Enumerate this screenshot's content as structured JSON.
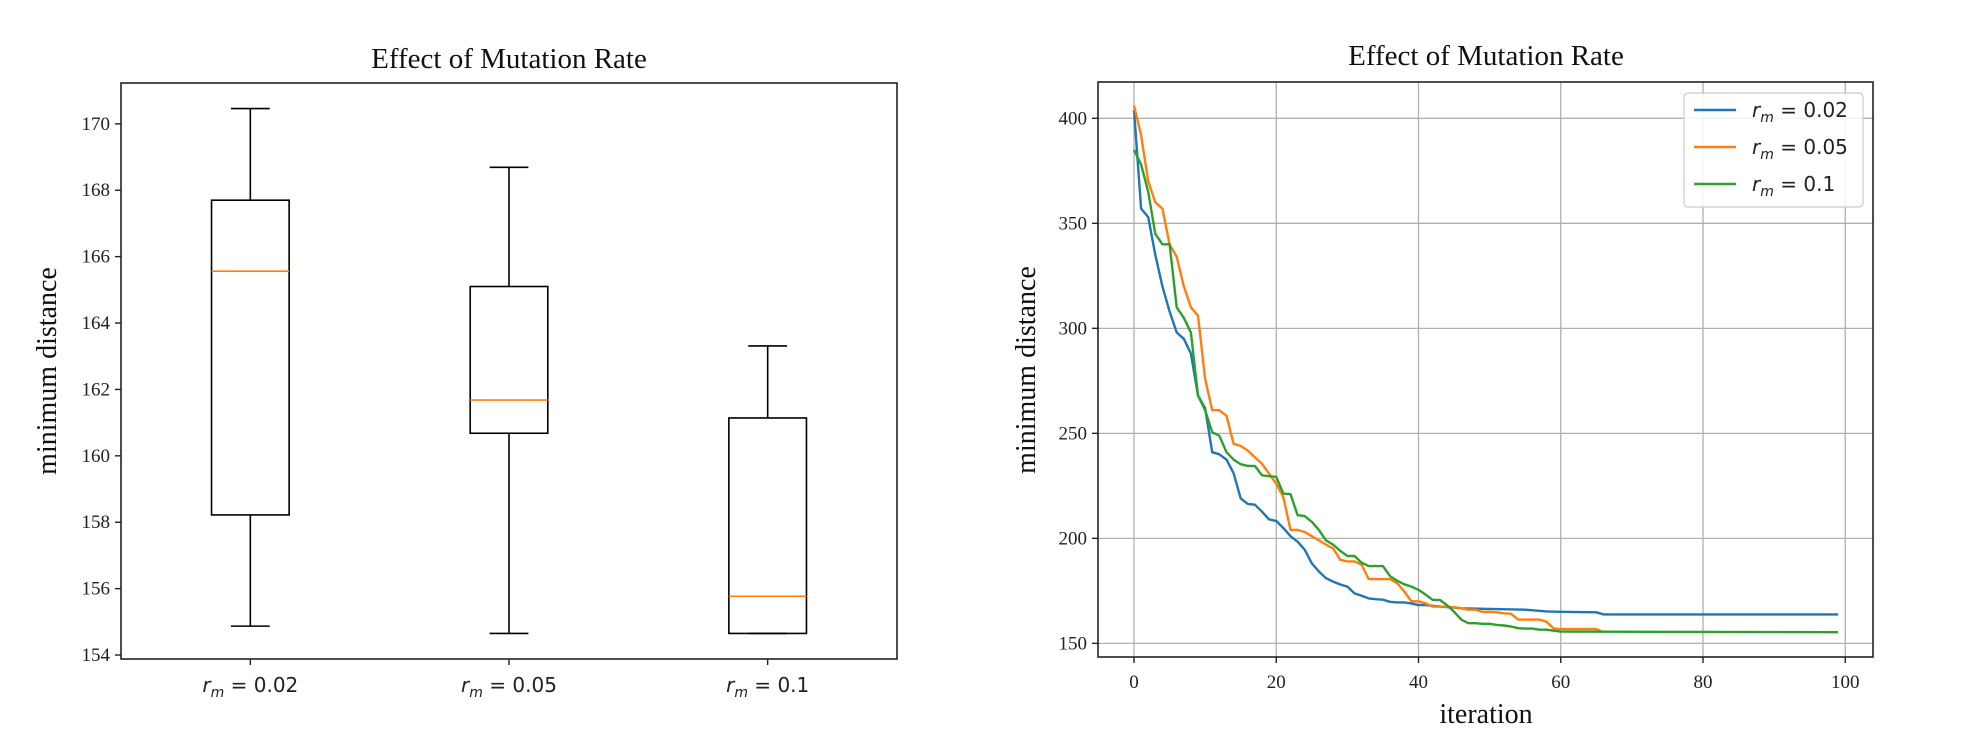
{
  "chart_data": [
    {
      "type": "box",
      "title": "Effect of Mutation Rate",
      "xlabel": "",
      "ylabel": "minimum distance",
      "ylim": [
        153.88,
        171.23
      ],
      "yticks": [
        154,
        156,
        158,
        160,
        162,
        164,
        166,
        168,
        170
      ],
      "categories": [
        {
          "var": "r",
          "sub": "m",
          "label": "r_m = 0.02",
          "value_text": "0.02"
        },
        {
          "var": "r",
          "sub": "m",
          "label": "r_m = 0.05",
          "value_text": "0.05"
        },
        {
          "var": "r",
          "sub": "m",
          "label": "r_m = 0.1",
          "value_text": "0.1"
        }
      ],
      "boxes": [
        {
          "whisker_low": 154.87,
          "q1": 158.22,
          "median": 165.56,
          "q3": 167.7,
          "whisker_high": 170.46
        },
        {
          "whisker_low": 154.65,
          "q1": 160.68,
          "median": 161.68,
          "q3": 165.1,
          "whisker_high": 168.69
        },
        {
          "whisker_low": 154.65,
          "q1": 154.65,
          "median": 155.77,
          "q3": 161.14,
          "whisker_high": 163.31
        }
      ],
      "grid": false,
      "colors": {
        "box": "#000000",
        "median": "#ff7f0e"
      }
    },
    {
      "type": "line",
      "title": "Effect of Mutation Rate",
      "xlabel": "iteration",
      "ylabel": "minimum distance",
      "xlim": [
        -5.06,
        103.9
      ],
      "ylim": [
        143.5,
        417.3
      ],
      "xticks": [
        0,
        20,
        40,
        60,
        80,
        100
      ],
      "yticks": [
        150,
        200,
        250,
        300,
        350,
        400
      ],
      "grid": true,
      "legend_position": "top-right",
      "series": [
        {
          "name": "r_m = 0.02",
          "var": "r",
          "sub": "m",
          "value_text": "0.02",
          "color": "#1f77b4",
          "x": [
            0,
            1,
            2,
            3,
            4,
            5,
            6,
            7,
            8,
            9,
            10,
            11,
            12,
            13,
            14,
            15,
            16,
            17,
            18,
            19,
            20,
            21,
            22,
            23,
            24,
            25,
            26,
            27,
            28,
            29,
            30,
            31,
            32,
            33,
            34,
            35,
            36,
            37,
            38,
            39,
            40,
            41,
            42,
            43,
            44,
            45,
            46,
            50,
            55,
            58,
            60,
            65,
            66,
            99
          ],
          "y": [
            404,
            357,
            353,
            335,
            320,
            308,
            298,
            295,
            288,
            268,
            262,
            241,
            240,
            237.5,
            231,
            219,
            216.4,
            216,
            212.7,
            209,
            208.3,
            204.9,
            201,
            198.4,
            194.6,
            188.1,
            184.2,
            181,
            179.4,
            178,
            177,
            173.8,
            172.7,
            171.4,
            171,
            170.8,
            169.8,
            169.5,
            169.5,
            169,
            168.2,
            168.2,
            167.9,
            167.5,
            167.3,
            167,
            166.7,
            166.4,
            166,
            165.2,
            165,
            164.8,
            163.8,
            163.8
          ]
        },
        {
          "name": "r_m = 0.05",
          "var": "r",
          "sub": "m",
          "value_text": "0.05",
          "color": "#ff7f0e",
          "x": [
            0,
            1,
            2,
            3,
            4,
            5,
            6,
            7,
            8,
            9,
            10,
            11,
            12,
            13,
            14,
            15,
            16,
            17,
            18,
            19,
            20,
            21,
            22,
            23,
            24,
            25,
            26,
            27,
            28,
            29,
            30,
            31,
            32,
            33,
            34,
            35,
            36,
            37,
            38,
            39,
            40,
            41,
            42,
            43,
            44,
            45,
            46,
            47,
            48,
            49,
            50,
            51,
            52,
            53,
            54,
            55,
            56,
            57,
            58,
            59,
            60,
            61,
            62,
            63,
            64,
            65,
            66
          ],
          "y": [
            406,
            392,
            370,
            360,
            357,
            340,
            334,
            320,
            310,
            306,
            276,
            261,
            261,
            258.4,
            245,
            244,
            241.8,
            238.6,
            235.5,
            230.8,
            226,
            219.6,
            204,
            204,
            203,
            201,
            199,
            197,
            195.2,
            189.8,
            189,
            189,
            187.5,
            180.6,
            180.6,
            180.6,
            180.6,
            178.6,
            174.7,
            170,
            170,
            169,
            167.5,
            167.5,
            167.5,
            167.2,
            166.7,
            166,
            166,
            165,
            165,
            164.8,
            164.3,
            164.1,
            161.3,
            161.3,
            161.3,
            161.3,
            160.3,
            157.1,
            156.8,
            156.8,
            156.8,
            156.8,
            156.8,
            156.8,
            155.2
          ]
        },
        {
          "name": "r_m = 0.1",
          "var": "r",
          "sub": "m",
          "value_text": "0.1",
          "color": "#2ca02c",
          "x": [
            0,
            1,
            2,
            3,
            4,
            5,
            6,
            7,
            8,
            9,
            10,
            11,
            12,
            13,
            14,
            15,
            16,
            17,
            18,
            19,
            20,
            21,
            22,
            23,
            24,
            25,
            26,
            27,
            28,
            29,
            30,
            31,
            32,
            33,
            34,
            35,
            36,
            37,
            38,
            39,
            40,
            41,
            42,
            43,
            44,
            45,
            46,
            47,
            48,
            49,
            50,
            51,
            52,
            53,
            54,
            55,
            56,
            57,
            58,
            59,
            60,
            99
          ],
          "y": [
            385,
            378,
            365,
            345,
            340,
            340,
            310,
            305,
            298,
            268,
            261,
            250.5,
            248.9,
            241,
            237.5,
            235.3,
            234.5,
            234.5,
            230,
            229.6,
            229.3,
            221.3,
            221,
            211,
            210.6,
            207.9,
            204,
            199,
            197,
            194,
            191.6,
            191.6,
            188.4,
            186.8,
            186.8,
            186.8,
            182,
            179.8,
            178.1,
            177,
            175.5,
            173.2,
            170.7,
            170.7,
            168.2,
            165,
            161.3,
            159.6,
            159.6,
            159.3,
            159.3,
            158.8,
            158.5,
            158,
            157.2,
            157,
            157,
            156.5,
            156.5,
            156,
            155.6,
            155.3
          ]
        }
      ]
    }
  ]
}
